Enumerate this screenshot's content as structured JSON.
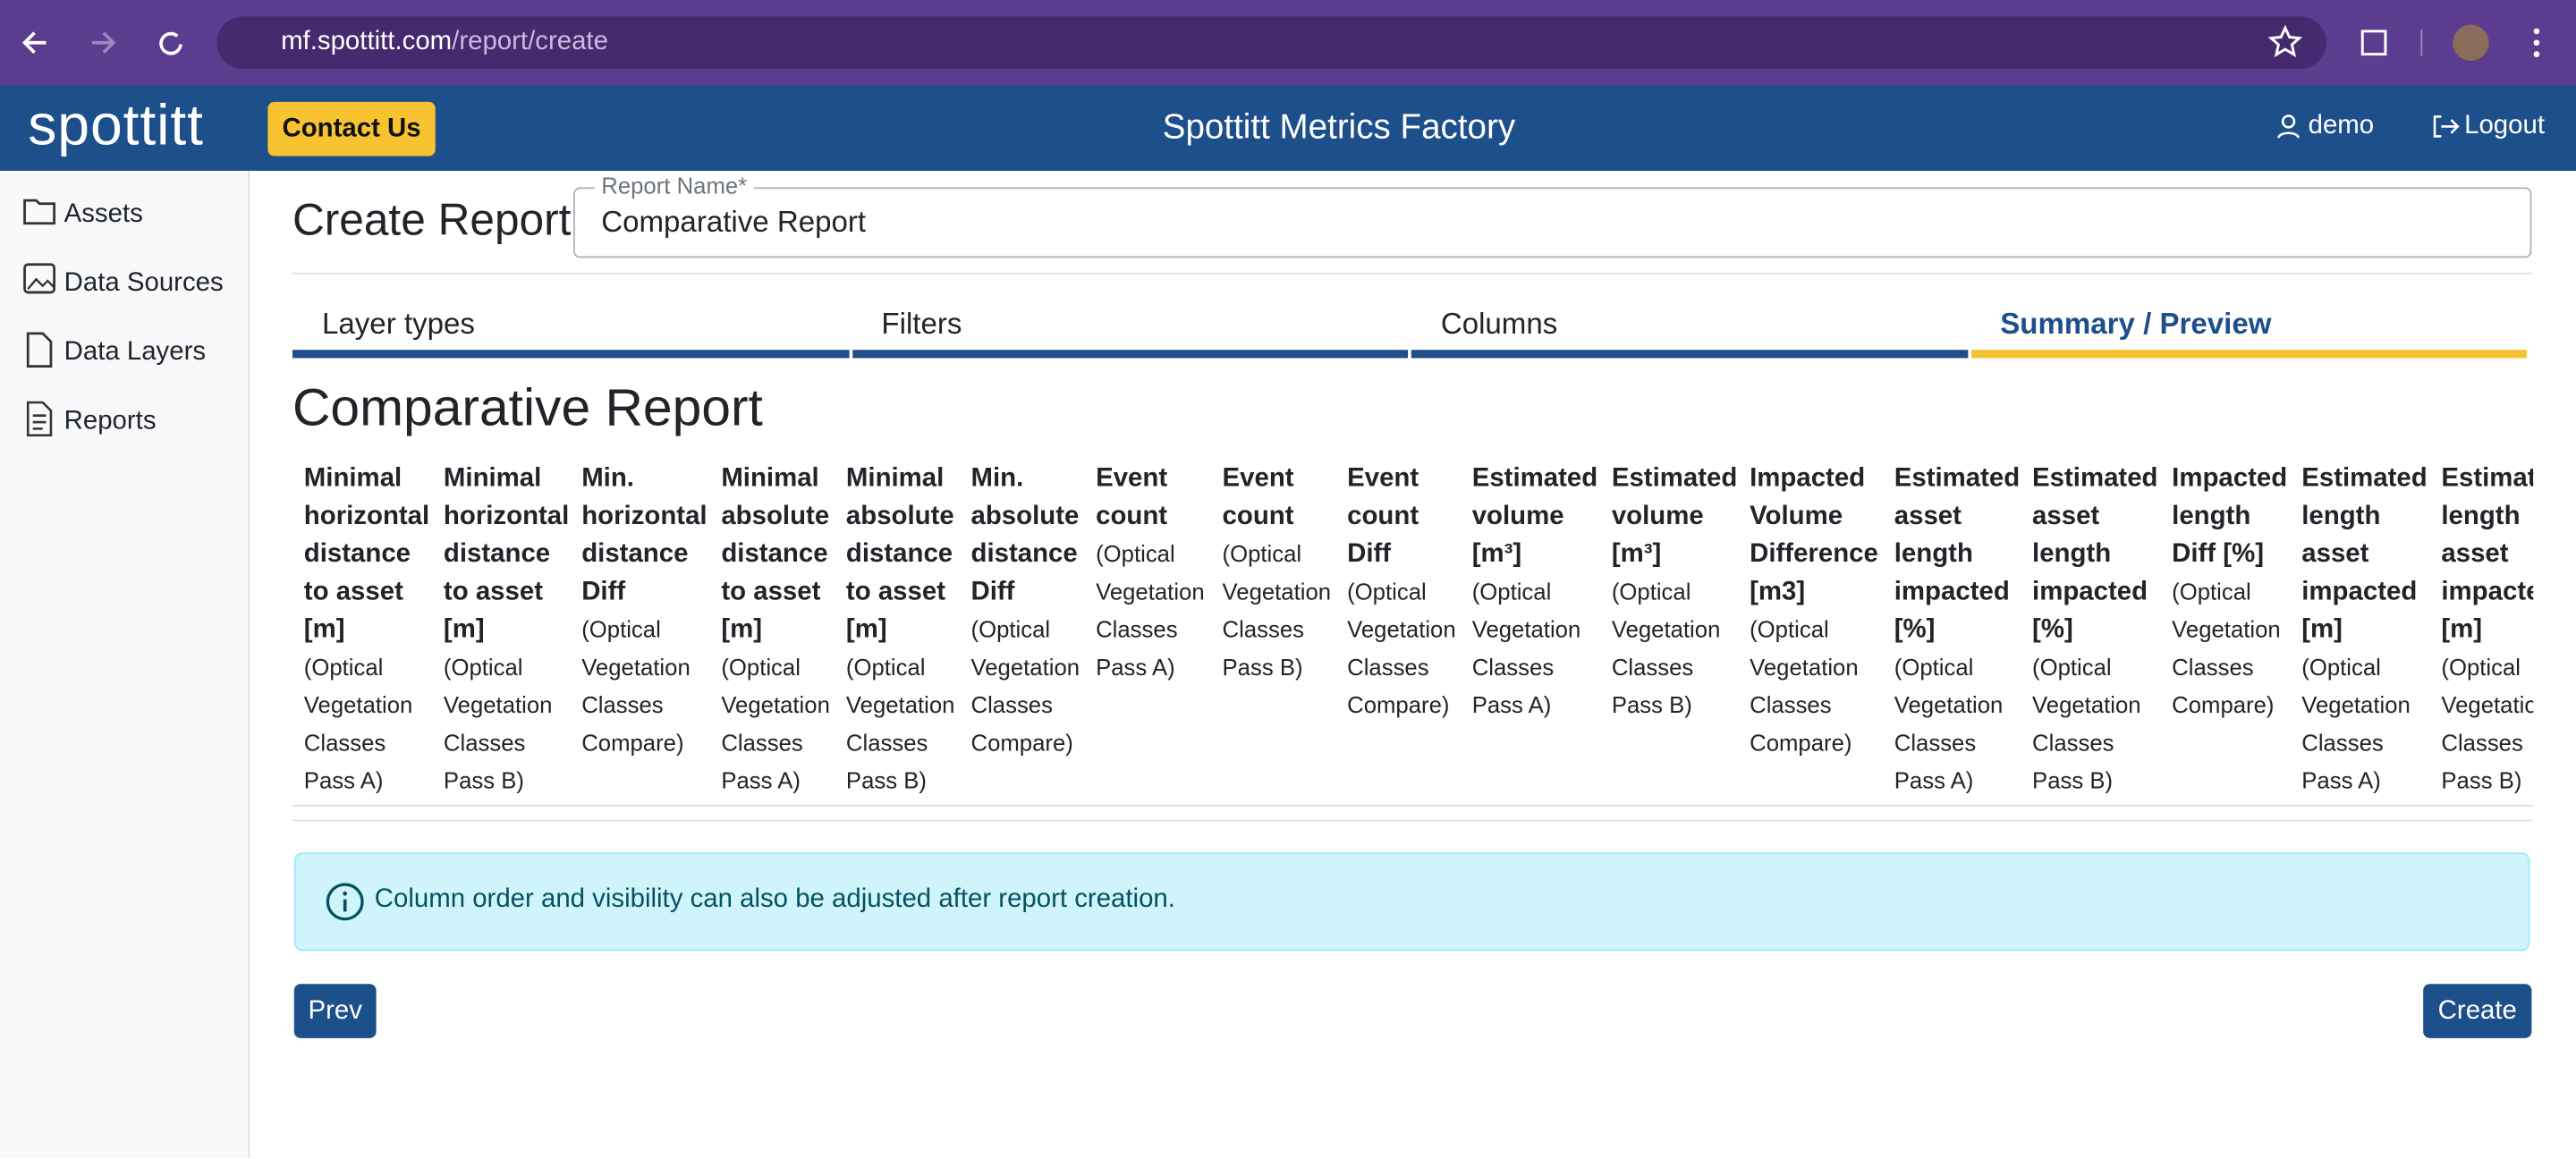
{
  "browser": {
    "url_host": "mf.spottitt.com",
    "url_path": "/report/create"
  },
  "header": {
    "logo": "spottitt",
    "contact_button": "Contact Us",
    "title": "Spottitt Metrics Factory",
    "user": "demo",
    "logout": "Logout"
  },
  "sidebar": {
    "items": [
      "Assets",
      "Data Sources",
      "Data Layers",
      "Reports"
    ]
  },
  "page": {
    "title": "Create Report",
    "report_name_label": "Report Name*",
    "report_name_value": "Comparative Report"
  },
  "tabs": [
    "Layer types",
    "Filters",
    "Columns",
    "Summary / Preview"
  ],
  "preview": {
    "title": "Comparative Report",
    "columns": [
      {
        "name": "Minimal horizontal distance to asset [m]",
        "sub": "(Optical Vegetation Classes Pass A)"
      },
      {
        "name": "Minimal horizontal distance to asset [m]",
        "sub": "(Optical Vegetation Classes Pass B)"
      },
      {
        "name": "Min. horizontal distance Diff",
        "sub": "(Optical Vegetation Classes Compare)"
      },
      {
        "name": "Minimal absolute distance to asset [m]",
        "sub": "(Optical Vegetation Classes Pass A)"
      },
      {
        "name": "Minimal absolute distance to asset [m]",
        "sub": "(Optical Vegetation Classes Pass B)"
      },
      {
        "name": "Min. absolute distance Diff",
        "sub": "(Optical Vegetation Classes Compare)"
      },
      {
        "name": "Event count",
        "sub": "(Optical Vegetation Classes Pass A)"
      },
      {
        "name": "Event count",
        "sub": "(Optical Vegetation Classes Pass B)"
      },
      {
        "name": "Event count Diff",
        "sub": "(Optical Vegetation Classes Compare)"
      },
      {
        "name": "Estimated volume [m³]",
        "sub": "(Optical Vegetation Classes Pass A)"
      },
      {
        "name": "Estimated volume [m³]",
        "sub": "(Optical Vegetation Classes Pass B)"
      },
      {
        "name": "Impacted Volume Difference [m3]",
        "sub": "(Optical Vegetation Classes Compare)"
      },
      {
        "name": "Estimated asset length impacted [%]",
        "sub": "(Optical Vegetation Classes Pass A)"
      },
      {
        "name": "Estimated asset length impacted [%]",
        "sub": "(Optical Vegetation Classes Pass B)"
      },
      {
        "name": "Impacted length Diff [%]",
        "sub": "(Optical Vegetation Classes Compare)"
      },
      {
        "name": "Estimated length asset impacted [m]",
        "sub": "(Optical Vegetation Classes Pass A)"
      },
      {
        "name": "Estimated length asset impacted [m]",
        "sub": "(Optical Vegetation Classes Pass B)"
      }
    ]
  },
  "info": "Column order and visibility can also be adjusted after report creation.",
  "buttons": {
    "prev": "Prev",
    "create": "Create"
  }
}
